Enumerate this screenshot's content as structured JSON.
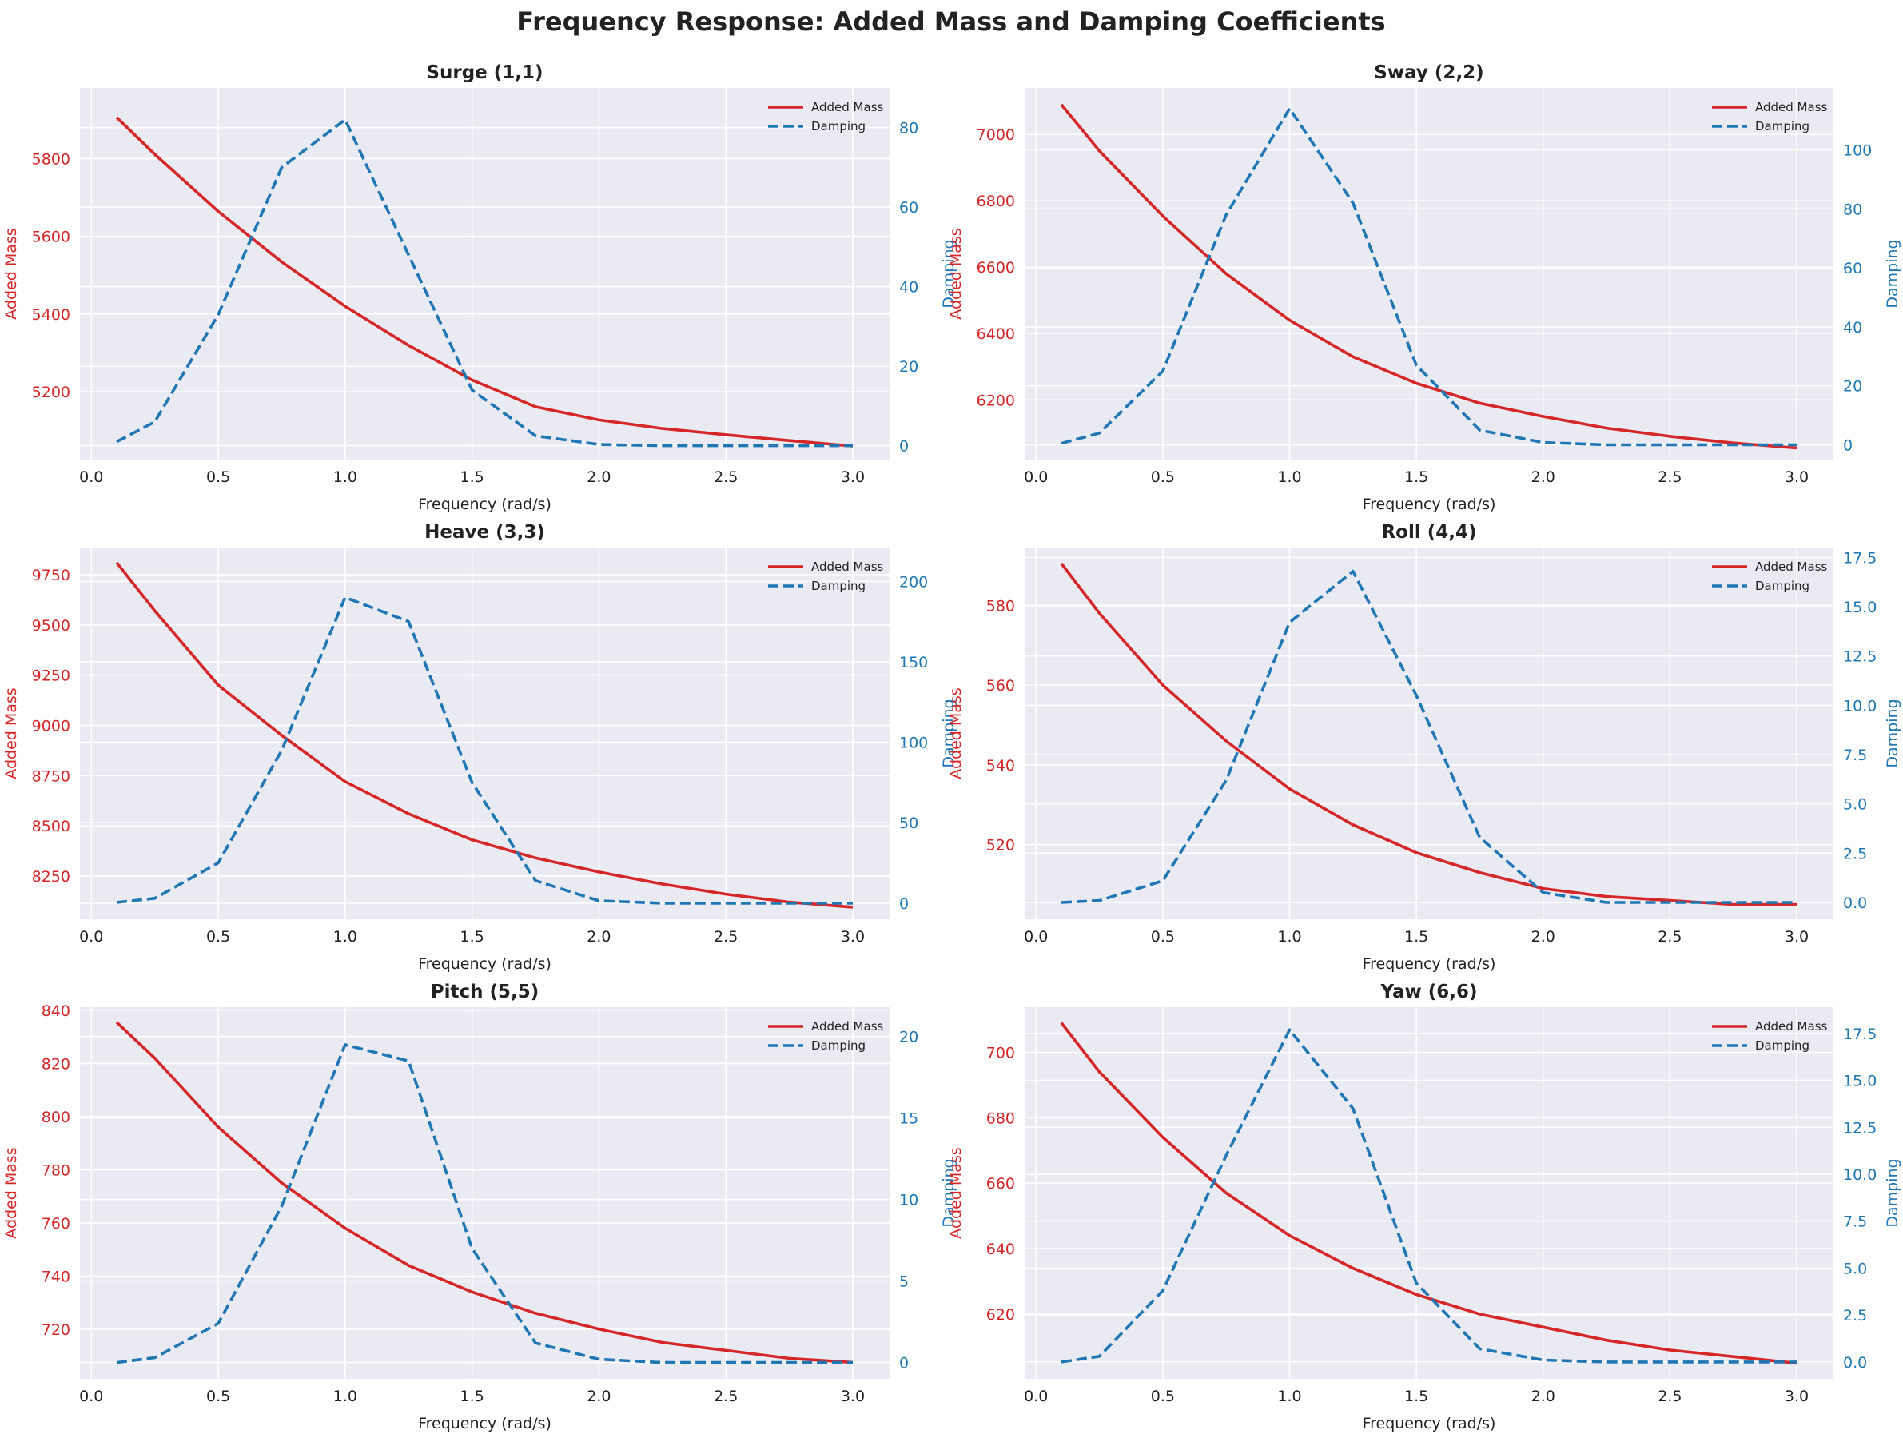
{
  "figure": {
    "title": "Frequency Response: Added Mass and Damping Coefficients"
  },
  "colors": {
    "added_mass": "#d62728",
    "damping": "#1f77b4",
    "panel_bg": "#eaeaf2",
    "grid": "#ffffff",
    "text": "#222222"
  },
  "chart_data": [
    {
      "type": "line",
      "title": "Surge (1,1)",
      "xlabel": "Frequency (rad/s)",
      "ylabel": "Added Mass",
      "ylabel_right": "Damping",
      "legend_position": "top-right",
      "grid": true,
      "xlim": [
        -0.045,
        3.145
      ],
      "ylim": [
        5025,
        5982
      ],
      "ylim_right": [
        -3.5,
        90
      ],
      "xticks": [
        0.0,
        0.5,
        1.0,
        1.5,
        2.0,
        2.5,
        3.0
      ],
      "yticks": [
        5200,
        5400,
        5600,
        5800
      ],
      "yticks_right": [
        0,
        20,
        40,
        60,
        80
      ],
      "x_range": [
        0.1,
        3.0
      ],
      "series": [
        {
          "name": "Added Mass",
          "axis": "left",
          "style": "solid",
          "x": [
            0.1,
            0.25,
            0.5,
            0.75,
            1.0,
            1.25,
            1.5,
            1.75,
            2.0,
            2.25,
            2.5,
            2.75,
            3.0
          ],
          "values": [
            5906,
            5811,
            5664,
            5534,
            5420,
            5319,
            5230,
            5161,
            5127,
            5105,
            5089,
            5074,
            5060
          ]
        },
        {
          "name": "Damping",
          "axis": "right",
          "style": "dashed",
          "x": [
            0.1,
            0.25,
            0.5,
            0.75,
            1.0,
            1.25,
            1.5,
            1.75,
            2.0,
            2.25,
            2.5,
            2.75,
            3.0
          ],
          "values": [
            1,
            6,
            33,
            70,
            82,
            48,
            14,
            2.5,
            0.3,
            0,
            0,
            0,
            0
          ]
        }
      ]
    },
    {
      "type": "line",
      "title": "Sway (2,2)",
      "xlabel": "Frequency (rad/s)",
      "ylabel": "Added Mass",
      "ylabel_right": "Damping",
      "legend_position": "top-right",
      "grid": true,
      "xlim": [
        -0.045,
        3.145
      ],
      "ylim": [
        6020,
        7140
      ],
      "ylim_right": [
        -5,
        121
      ],
      "xticks": [
        0.0,
        0.5,
        1.0,
        1.5,
        2.0,
        2.5,
        3.0
      ],
      "yticks": [
        6200,
        6400,
        6600,
        6800,
        7000
      ],
      "yticks_right": [
        0,
        20,
        40,
        60,
        80,
        100
      ],
      "x_range": [
        0.1,
        3.0
      ],
      "series": [
        {
          "name": "Added Mass",
          "axis": "left",
          "style": "solid",
          "x": [
            0.1,
            0.25,
            0.5,
            0.75,
            1.0,
            1.25,
            1.5,
            1.75,
            2.0,
            2.25,
            2.5,
            2.75,
            3.0
          ],
          "values": [
            7090,
            6950,
            6754,
            6580,
            6440,
            6330,
            6250,
            6190,
            6150,
            6115,
            6090,
            6070,
            6055
          ]
        },
        {
          "name": "Damping",
          "axis": "right",
          "style": "dashed",
          "x": [
            0.1,
            0.25,
            0.5,
            0.75,
            1.0,
            1.25,
            1.5,
            1.75,
            2.0,
            2.25,
            2.5,
            2.75,
            3.0
          ],
          "values": [
            0.5,
            4,
            25,
            78,
            114,
            82,
            27,
            5,
            0.8,
            0,
            0,
            0,
            0
          ]
        }
      ]
    },
    {
      "type": "line",
      "title": "Heave (3,3)",
      "xlabel": "Frequency (rad/s)",
      "ylabel": "Added Mass",
      "ylabel_right": "Damping",
      "legend_position": "top-right",
      "grid": true,
      "xlim": [
        -0.045,
        3.145
      ],
      "ylim": [
        8035,
        9885
      ],
      "ylim_right": [
        -10,
        221
      ],
      "xticks": [
        0.0,
        0.5,
        1.0,
        1.5,
        2.0,
        2.5,
        3.0
      ],
      "yticks": [
        8250,
        8500,
        8750,
        9000,
        9250,
        9500,
        9750
      ],
      "yticks_right": [
        0,
        50,
        100,
        150,
        200
      ],
      "x_range": [
        0.1,
        3.0
      ],
      "series": [
        {
          "name": "Added Mass",
          "axis": "left",
          "style": "solid",
          "x": [
            0.1,
            0.25,
            0.5,
            0.75,
            1.0,
            1.25,
            1.5,
            1.75,
            2.0,
            2.25,
            2.5,
            2.75,
            3.0
          ],
          "values": [
            9810,
            9570,
            9200,
            8950,
            8720,
            8560,
            8430,
            8340,
            8270,
            8210,
            8160,
            8120,
            8095
          ]
        },
        {
          "name": "Damping",
          "axis": "right",
          "style": "dashed",
          "x": [
            0.1,
            0.25,
            0.5,
            0.75,
            1.0,
            1.25,
            1.5,
            1.75,
            2.0,
            2.25,
            2.5,
            2.75,
            3.0
          ],
          "values": [
            0.5,
            3,
            25,
            95,
            190,
            175,
            75,
            14,
            1.5,
            0,
            0,
            0,
            0
          ]
        }
      ]
    },
    {
      "type": "line",
      "title": "Roll (4,4)",
      "xlabel": "Frequency (rad/s)",
      "ylabel": "Added Mass",
      "ylabel_right": "Damping",
      "legend_position": "top-right",
      "grid": true,
      "xlim": [
        -0.045,
        3.145
      ],
      "ylim": [
        501.3,
        594.5
      ],
      "ylim_right": [
        -0.85,
        18
      ],
      "xticks": [
        0.0,
        0.5,
        1.0,
        1.5,
        2.0,
        2.5,
        3.0
      ],
      "yticks": [
        520,
        540,
        560,
        580
      ],
      "yticks_right": [
        0.0,
        2.5,
        5.0,
        7.5,
        10.0,
        12.5,
        15.0,
        17.5
      ],
      "x_range": [
        0.1,
        3.0
      ],
      "series": [
        {
          "name": "Added Mass",
          "axis": "left",
          "style": "solid",
          "x": [
            0.1,
            0.25,
            0.5,
            0.75,
            1.0,
            1.25,
            1.5,
            1.75,
            2.0,
            2.25,
            2.5,
            2.75,
            3.0
          ],
          "values": [
            590.5,
            578,
            560,
            546,
            534,
            525,
            518,
            513,
            509,
            507,
            506,
            505,
            505
          ]
        },
        {
          "name": "Damping",
          "axis": "right",
          "style": "dashed",
          "x": [
            0.1,
            0.25,
            0.5,
            0.75,
            1.0,
            1.25,
            1.5,
            1.75,
            2.0,
            2.25,
            2.5,
            2.75,
            3.0
          ],
          "values": [
            0,
            0.1,
            1.1,
            6.2,
            14.2,
            16.8,
            10.5,
            3.3,
            0.5,
            0,
            0,
            0,
            0
          ]
        }
      ]
    },
    {
      "type": "line",
      "title": "Pitch (5,5)",
      "xlabel": "Frequency (rad/s)",
      "ylabel": "Added Mass",
      "ylabel_right": "Damping",
      "legend_position": "top-right",
      "grid": true,
      "xlim": [
        -0.045,
        3.145
      ],
      "ylim": [
        701.3,
        841.2
      ],
      "ylim_right": [
        -1,
        21.8
      ],
      "xticks": [
        0.0,
        0.5,
        1.0,
        1.5,
        2.0,
        2.5,
        3.0
      ],
      "yticks": [
        720,
        740,
        760,
        780,
        800,
        820,
        840
      ],
      "yticks_right": [
        0,
        5,
        10,
        15,
        20
      ],
      "x_range": [
        0.1,
        3.0
      ],
      "series": [
        {
          "name": "Added Mass",
          "axis": "left",
          "style": "solid",
          "x": [
            0.1,
            0.25,
            0.5,
            0.75,
            1.0,
            1.25,
            1.5,
            1.75,
            2.0,
            2.25,
            2.5,
            2.75,
            3.0
          ],
          "values": [
            835.5,
            822,
            796,
            775,
            758,
            744,
            734,
            726,
            720,
            715,
            712,
            709,
            707.5
          ]
        },
        {
          "name": "Damping",
          "axis": "right",
          "style": "dashed",
          "x": [
            0.1,
            0.25,
            0.5,
            0.75,
            1.0,
            1.25,
            1.5,
            1.75,
            2.0,
            2.25,
            2.5,
            2.75,
            3.0
          ],
          "values": [
            0,
            0.3,
            2.4,
            9.6,
            19.5,
            18.5,
            7,
            1.2,
            0.2,
            0,
            0,
            0,
            0
          ]
        }
      ]
    },
    {
      "type": "line",
      "title": "Yaw (6,6)",
      "xlabel": "Frequency (rad/s)",
      "ylabel": "Added Mass",
      "ylabel_right": "Damping",
      "legend_position": "top-right",
      "grid": true,
      "xlim": [
        -0.045,
        3.145
      ],
      "ylim": [
        600.2,
        713.8
      ],
      "ylim_right": [
        -0.9,
        18.9
      ],
      "xticks": [
        0.0,
        0.5,
        1.0,
        1.5,
        2.0,
        2.5,
        3.0
      ],
      "yticks": [
        620,
        640,
        660,
        680,
        700
      ],
      "yticks_right": [
        0.0,
        2.5,
        5.0,
        7.5,
        10.0,
        12.5,
        15.0,
        17.5
      ],
      "x_range": [
        0.1,
        3.0
      ],
      "series": [
        {
          "name": "Added Mass",
          "axis": "left",
          "style": "solid",
          "x": [
            0.1,
            0.25,
            0.5,
            0.75,
            1.0,
            1.25,
            1.5,
            1.75,
            2.0,
            2.25,
            2.5,
            2.75,
            3.0
          ],
          "values": [
            709,
            694,
            674,
            657,
            644,
            634,
            626,
            620,
            616,
            612,
            609,
            607,
            605
          ]
        },
        {
          "name": "Damping",
          "axis": "right",
          "style": "dashed",
          "x": [
            0.1,
            0.25,
            0.5,
            0.75,
            1.0,
            1.25,
            1.5,
            1.75,
            2.0,
            2.25,
            2.5,
            2.75,
            3.0
          ],
          "values": [
            0,
            0.3,
            3.8,
            11,
            17.7,
            13.5,
            4.2,
            0.7,
            0.1,
            0,
            0,
            0,
            0
          ]
        }
      ]
    }
  ]
}
